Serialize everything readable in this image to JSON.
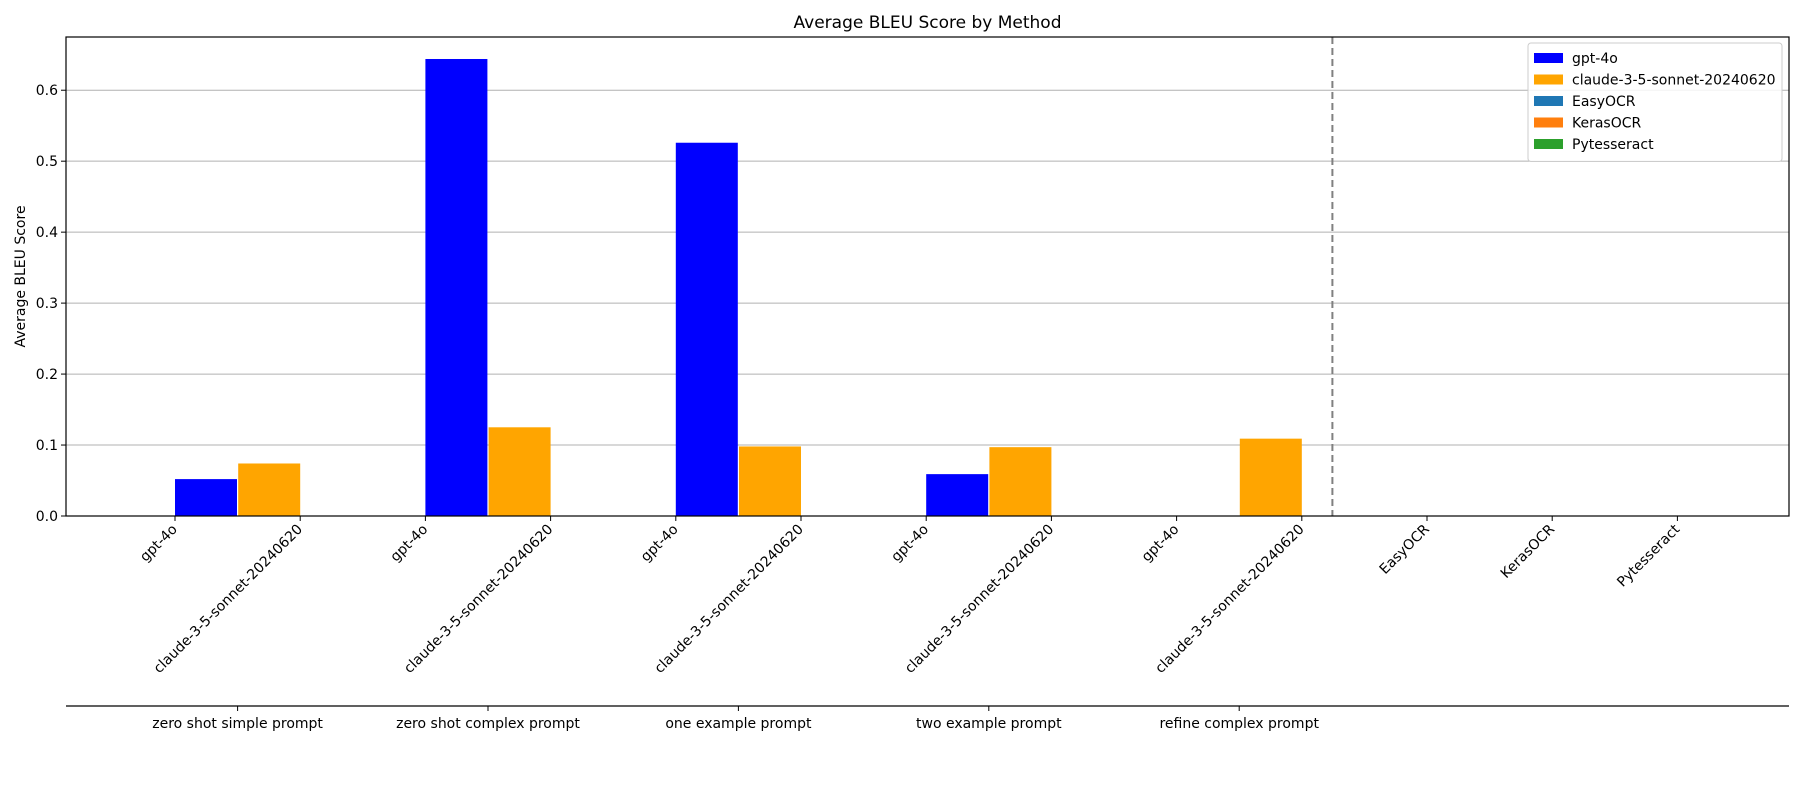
{
  "chart_data": {
    "type": "bar",
    "title": "Average BLEU Score by Method",
    "xlabel": "",
    "ylabel": "Average BLEU Score",
    "ylim": [
      0,
      0.675
    ],
    "yticks": [
      0.0,
      0.1,
      0.2,
      0.3,
      0.4,
      0.5,
      0.6
    ],
    "grid": "y",
    "legend_position": "top-right",
    "categories": [
      "gpt-4o",
      "claude-3-5-sonnet-20240620",
      "gpt-4o",
      "claude-3-5-sonnet-20240620",
      "gpt-4o",
      "claude-3-5-sonnet-20240620",
      "gpt-4o",
      "claude-3-5-sonnet-20240620",
      "gpt-4o",
      "claude-3-5-sonnet-20240620",
      "EasyOCR",
      "KerasOCR",
      "Pytesseract"
    ],
    "series": [
      {
        "name": "gpt-4o",
        "color": "#0000ff",
        "values": [
          0.052,
          null,
          0.644,
          null,
          0.526,
          null,
          0.059,
          null,
          null,
          null,
          null,
          null,
          null
        ]
      },
      {
        "name": "claude-3-5-sonnet-20240620",
        "color": "#ffa500",
        "values": [
          null,
          0.074,
          null,
          0.125,
          null,
          0.098,
          null,
          0.097,
          null,
          0.109,
          null,
          null,
          null
        ]
      },
      {
        "name": "EasyOCR",
        "color": "#1f77b4",
        "values": [
          null,
          null,
          null,
          null,
          null,
          null,
          null,
          null,
          null,
          null,
          0.0,
          null,
          null
        ]
      },
      {
        "name": "KerasOCR",
        "color": "#ff7f0e",
        "values": [
          null,
          null,
          null,
          null,
          null,
          null,
          null,
          null,
          null,
          null,
          null,
          0.0,
          null
        ]
      },
      {
        "name": "Pytesseract",
        "color": "#2ca02c",
        "values": [
          null,
          null,
          null,
          null,
          null,
          null,
          null,
          null,
          null,
          null,
          null,
          null,
          0.0
        ]
      }
    ],
    "groups": [
      {
        "label": "zero shot simple prompt"
      },
      {
        "label": "zero shot complex prompt"
      },
      {
        "label": "one example prompt"
      },
      {
        "label": "two example prompt"
      },
      {
        "label": "refine complex prompt"
      }
    ],
    "separator": "dashed vertical line after last prompt group"
  }
}
